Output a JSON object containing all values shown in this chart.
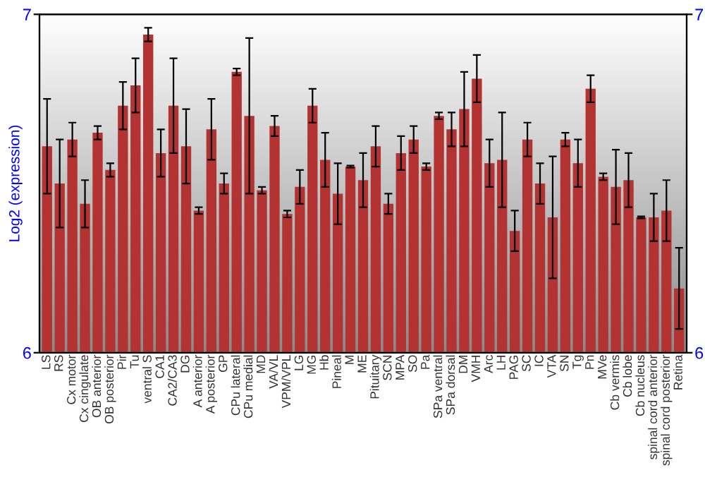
{
  "chart_data": {
    "type": "bar",
    "ylabel": "Log2 (expression)",
    "categories": [
      "LS",
      "RS",
      "Cx motor",
      "Cx cingulate",
      "OB anterior",
      "OB posterior",
      "Pir",
      "Tu",
      "ventral S",
      "CA1",
      "CA2/CA3",
      "DG",
      "A anterior",
      "A posterior",
      "GP",
      "CPu lateral",
      "CPu medial",
      "MD",
      "VA/VL",
      "VPM/VPL",
      "LG",
      "MG",
      "Hb",
      "Pineal",
      "M",
      "ME",
      "Pituitary",
      "SCN",
      "MPA",
      "SO",
      "Pa",
      "SPa ventral",
      "SPa dorsal",
      "DM",
      "VMH",
      "Arc",
      "LH",
      "PAG",
      "SC",
      "IC",
      "VTA",
      "SN",
      "Tg",
      "Pn",
      "MVe",
      "Cb vermis",
      "Cb lobe",
      "Cb nucleus",
      "spinal cord anterior",
      "spinal cord posterior",
      "Retina"
    ],
    "series": [
      {
        "color": "#b33232",
        "values": [
          6.61,
          6.5,
          6.63,
          6.44,
          6.65,
          6.54,
          6.73,
          6.79,
          6.94,
          6.59,
          6.73,
          6.61,
          6.42,
          6.66,
          6.5,
          6.83,
          6.7,
          6.48,
          6.67,
          6.41,
          6.49,
          6.73,
          6.57,
          6.47,
          6.55,
          6.51,
          6.61,
          6.44,
          6.59,
          6.63,
          6.55,
          6.7,
          6.66,
          6.72,
          6.81,
          6.56,
          6.57,
          6.36,
          6.63,
          6.5,
          6.4,
          6.63,
          6.56,
          6.78,
          6.52,
          6.49,
          6.51,
          6.4,
          6.4,
          6.42,
          6.19
        ],
        "errors": [
          0.14,
          0.13,
          0.05,
          0.07,
          0.02,
          0.02,
          0.07,
          0.08,
          0.02,
          0.07,
          0.14,
          0.11,
          0.01,
          0.09,
          0.03,
          0.01,
          0.23,
          0.01,
          0.03,
          0.01,
          0.05,
          0.05,
          0.08,
          0.09,
          0.003,
          0.08,
          0.06,
          0.03,
          0.05,
          0.04,
          0.01,
          0.01,
          0.05,
          0.11,
          0.07,
          0.07,
          0.14,
          0.06,
          0.05,
          0.06,
          0.18,
          0.02,
          0.07,
          0.04,
          0.01,
          0.11,
          0.08,
          0.003,
          0.07,
          0.09,
          0.12
        ]
      }
    ],
    "ylim": [
      6,
      7
    ],
    "yticks": [
      6,
      7
    ],
    "y2lim": [
      6,
      7
    ],
    "y2ticks": [
      6,
      7
    ],
    "grid": false
  }
}
